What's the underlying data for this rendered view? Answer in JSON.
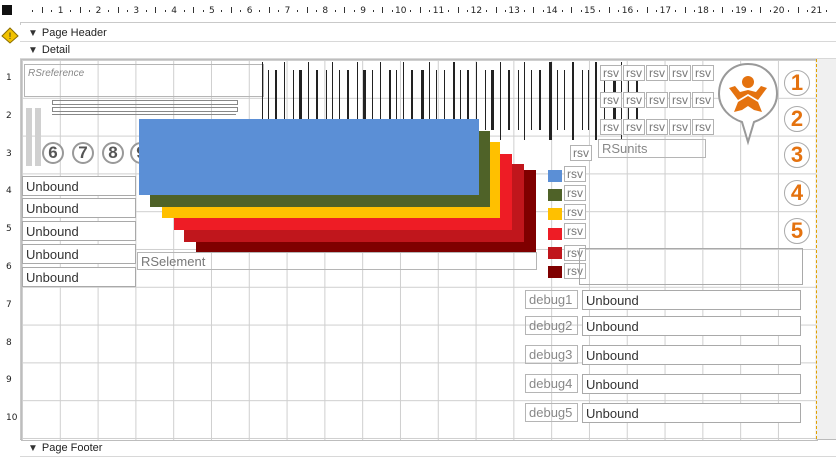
{
  "sections": {
    "header": "Page Header",
    "detail": "Detail",
    "footer": "Page Footer"
  },
  "ruler": {
    "top": [
      "1",
      "2",
      "3",
      "4",
      "5",
      "6",
      "7",
      "8",
      "9",
      "10",
      "11",
      "12",
      "13",
      "14",
      "15",
      "16",
      "17",
      "18",
      "19",
      "20",
      "21"
    ],
    "left": [
      "1",
      "2",
      "3",
      "4",
      "5",
      "6",
      "7",
      "8",
      "9",
      "10"
    ]
  },
  "labels": {
    "rsreference": "RSreference",
    "rselement": "RSelement",
    "rsunits": "RSunits",
    "rsv": "rsv"
  },
  "unbound_left": [
    "Unbound",
    "Unbound",
    "Unbound",
    "Unbound",
    "Unbound"
  ],
  "debug": [
    {
      "label": "debug1",
      "value": "Unbound"
    },
    {
      "label": "debug2",
      "value": "Unbound"
    },
    {
      "label": "debug3",
      "value": "Unbound"
    },
    {
      "label": "debug4",
      "value": "Unbound"
    },
    {
      "label": "debug5",
      "value": "Unbound"
    }
  ],
  "numbers_gray": [
    "6",
    "7",
    "8",
    "9"
  ],
  "numbers_orange": [
    "1",
    "2",
    "3",
    "4",
    "5"
  ],
  "colors": {
    "blue": "#5b8fd6",
    "olive": "#4f6228",
    "gold": "#ffc000",
    "red": "#ee1c25",
    "crimson": "#c0161c",
    "darkred": "#7f0000",
    "orange": "#e4720f"
  },
  "icons": {
    "warning": "warning-icon",
    "logo": "figure-logo-icon",
    "chevron": "chevron-down-icon"
  }
}
